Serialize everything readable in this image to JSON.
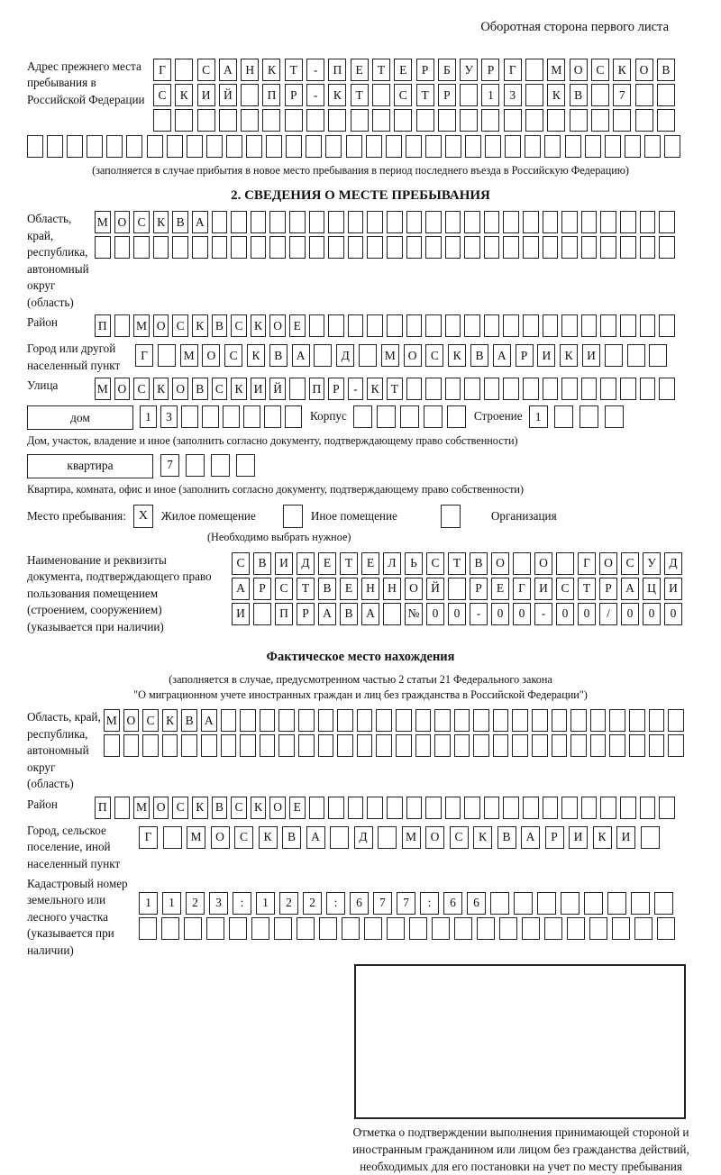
{
  "page": {
    "side_note": "Оборотная сторона первого листа"
  },
  "prev_address": {
    "label": "Адрес прежнего места пребывания в Российской Федерации",
    "rows": [
      {
        "chars": "Г САНКТ-ПЕТЕРБУРГ МОСКОВ",
        "count": 24
      },
      {
        "chars": "СКИЙ ПР-КТ СТР 13 КВ 7",
        "count": 24
      },
      {
        "chars": "",
        "count": 24
      }
    ],
    "overflow_row": {
      "chars": "",
      "count": 33
    },
    "note": "(заполняется в случае прибытия в новое место пребывания в период последнего въезда в Российскую Федерацию)"
  },
  "section2": {
    "title": "2. СВЕДЕНИЯ О МЕСТЕ ПРЕБЫВАНИЯ",
    "region": {
      "label": "Область, край, республика, автономный округ (область)",
      "rows": [
        {
          "chars": "МОСКВА",
          "count": 30
        },
        {
          "chars": "",
          "count": 30
        }
      ]
    },
    "district": {
      "label": "Район",
      "row": {
        "chars": "П МОСКВСКОЕ",
        "count": 30
      }
    },
    "city": {
      "label": "Город или другой населенный пункт",
      "row": {
        "chars": "Г МОСКВА Д МОСКВАРИКИ",
        "count": 24
      }
    },
    "street": {
      "label": "Улица",
      "row": {
        "chars": "МОСКОВСКИЙ ПР-КТ",
        "count": 30
      }
    },
    "house": {
      "box_label": "дом",
      "row": {
        "chars": "13",
        "count": 8
      },
      "korpus_label": "Корпус",
      "korpus_row": {
        "chars": "",
        "count": 5
      },
      "stroenie_label": "Строение",
      "stroenie_row": {
        "chars": "1",
        "count": 4
      },
      "note": "Дом, участок, владение и иное (заполнить согласно документу, подтверждающему право собственности)"
    },
    "apartment": {
      "box_label": "квартира",
      "row": {
        "chars": "7",
        "count": 4
      },
      "note": "Квартира, комната, офис и иное (заполнить согласно документу, подтверждающему право собственности)"
    },
    "stay_type": {
      "label": "Место пребывания:",
      "options": [
        {
          "label": "Жилое помещение",
          "mark": "X"
        },
        {
          "label": "Иное помещение",
          "mark": ""
        },
        {
          "label": "Организация",
          "mark": ""
        }
      ],
      "note": "(Необходимо выбрать нужное)"
    },
    "document": {
      "label": "Наименование и реквизиты документа, подтверждающего право пользования помещением (строением, сооружением) (указывается при наличии)",
      "rows": [
        {
          "chars": "СВИДЕТЕЛЬСТВО О ГОСУД",
          "count": 21
        },
        {
          "chars": "АРСТВЕННОЙ РЕГИСТРАЦИ",
          "count": 21
        },
        {
          "chars": "И ПРАВА №00-00-00/000",
          "count": 21
        }
      ]
    }
  },
  "actual_location": {
    "title": "Фактическое место нахождения",
    "note_line1": "(заполняется в случае, предусмотренном частью 2 статьи 21 Федерального закона",
    "note_line2": "\"О миграционном учете иностранных граждан и лиц без гражданства в Российской Федерации\")",
    "region": {
      "label": "Область, край, республика, автономный округ (область)",
      "rows": [
        {
          "chars": "МОСКВА",
          "count": 30
        },
        {
          "chars": "",
          "count": 30
        }
      ]
    },
    "district": {
      "label": "Район",
      "row": {
        "chars": "П МОСКВСКОЕ",
        "count": 30
      }
    },
    "city": {
      "label": "Город, сельское поселение, иной населенный пункт",
      "row": {
        "chars": "Г МОСКВА Д МОСКВАРИКИ",
        "count": 22
      }
    },
    "cadastral": {
      "label": "Кадастровый номер земельного или лесного участка (указывается при наличии)",
      "rows": [
        {
          "chars": "1123:122:677:66",
          "count": 23
        },
        {
          "chars": "",
          "count": 24
        }
      ]
    },
    "stamp_caption": "Отметка о подтверждении выполнения принимающей стороной и иностранным гражданином или лицом без гражданства действий, необходимых для его постановки на учет по месту пребывания"
  }
}
